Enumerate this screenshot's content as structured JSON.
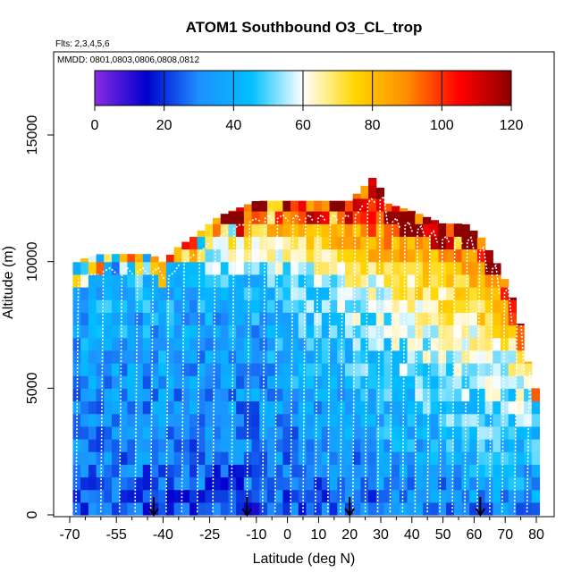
{
  "chart_data": {
    "type": "heatmap",
    "title": "ATOM1 Southbound O3_CL_trop",
    "flights_label": "Flts: 2,3,4,5,6",
    "dates_label": "MMDD: 0801,0803,0806,0808,0812",
    "xlabel": "Latitude (deg N)",
    "ylabel": "Altitude (m)",
    "xlim": [
      -70,
      80
    ],
    "ylim": [
      0,
      17500
    ],
    "x_ticks": [
      "-70",
      "-55",
      "-40",
      "-25",
      "-10",
      "0",
      "10",
      "20",
      "30",
      "40",
      "50",
      "60",
      "70",
      "80"
    ],
    "x_tick_values": [
      -70,
      -55,
      -40,
      -25,
      -10,
      0,
      10,
      20,
      30,
      40,
      50,
      60,
      70,
      80
    ],
    "x_minor_tick_values": [
      -65,
      -60,
      -50,
      -45,
      -35,
      -30,
      -20,
      -15,
      -5,
      5,
      15,
      25,
      35,
      45,
      55,
      65,
      75
    ],
    "y_ticks": [
      "0",
      "5000",
      "10000",
      "15000"
    ],
    "y_tick_values": [
      0,
      5000,
      10000,
      15000
    ],
    "colorbar": {
      "min": 0,
      "max": 120,
      "ticks": [
        "0",
        "20",
        "40",
        "60",
        "80",
        "100",
        "120"
      ],
      "tick_values": [
        0,
        20,
        40,
        60,
        80,
        100,
        120
      ],
      "colors": [
        "#8a2be2",
        "#0000cd",
        "#1e90ff",
        "#00bfff",
        "#ffffff",
        "#ffd700",
        "#ff8c00",
        "#ff0000",
        "#8b0000"
      ]
    },
    "ceiling_profile": [
      {
        "lat": -69,
        "alt": 10000
      },
      {
        "lat": -60,
        "alt": 10300
      },
      {
        "lat": -50,
        "alt": 10300
      },
      {
        "lat": -44,
        "alt": 10300
      },
      {
        "lat": -40,
        "alt": 10000
      },
      {
        "lat": -35,
        "alt": 10600
      },
      {
        "lat": -30,
        "alt": 11000
      },
      {
        "lat": -22,
        "alt": 11800
      },
      {
        "lat": -10,
        "alt": 12400
      },
      {
        "lat": 0,
        "alt": 12400
      },
      {
        "lat": 10,
        "alt": 12400
      },
      {
        "lat": 20,
        "alt": 12400
      },
      {
        "lat": 28,
        "alt": 13400
      },
      {
        "lat": 32,
        "alt": 12300
      },
      {
        "lat": 40,
        "alt": 12000
      },
      {
        "lat": 50,
        "alt": 11500
      },
      {
        "lat": 57,
        "alt": 11500
      },
      {
        "lat": 62,
        "alt": 11000
      },
      {
        "lat": 67,
        "alt": 10000
      },
      {
        "lat": 71,
        "alt": 9000
      },
      {
        "lat": 74,
        "alt": 8000
      },
      {
        "lat": 79,
        "alt": 5000
      }
    ],
    "ozone_by_altitude_lowlat": [
      {
        "alt": 0,
        "o3": 22
      },
      {
        "alt": 3000,
        "o3": 30
      },
      {
        "alt": 6000,
        "o3": 35
      },
      {
        "alt": 9000,
        "o3": 40
      },
      {
        "alt": 11000,
        "o3": 70
      },
      {
        "alt": 12500,
        "o3": 95
      }
    ],
    "ozone_by_altitude_highlat": [
      {
        "alt": 0,
        "o3": 30
      },
      {
        "alt": 3000,
        "o3": 45
      },
      {
        "alt": 6000,
        "o3": 60
      },
      {
        "alt": 8500,
        "o3": 80
      },
      {
        "alt": 10500,
        "o3": 100
      },
      {
        "alt": 12000,
        "o3": 115
      }
    ],
    "profile_latitudes": [
      -68,
      -60,
      -54,
      -49,
      -44,
      -39,
      -34,
      -29,
      -24,
      -18,
      -13,
      -8,
      -4,
      1,
      5,
      9,
      13,
      17,
      21,
      25,
      29,
      33,
      37,
      41,
      45,
      49,
      53,
      57,
      61,
      65,
      69,
      73,
      77
    ],
    "arrow_latitudes": [
      -43,
      -13,
      20,
      62
    ]
  }
}
